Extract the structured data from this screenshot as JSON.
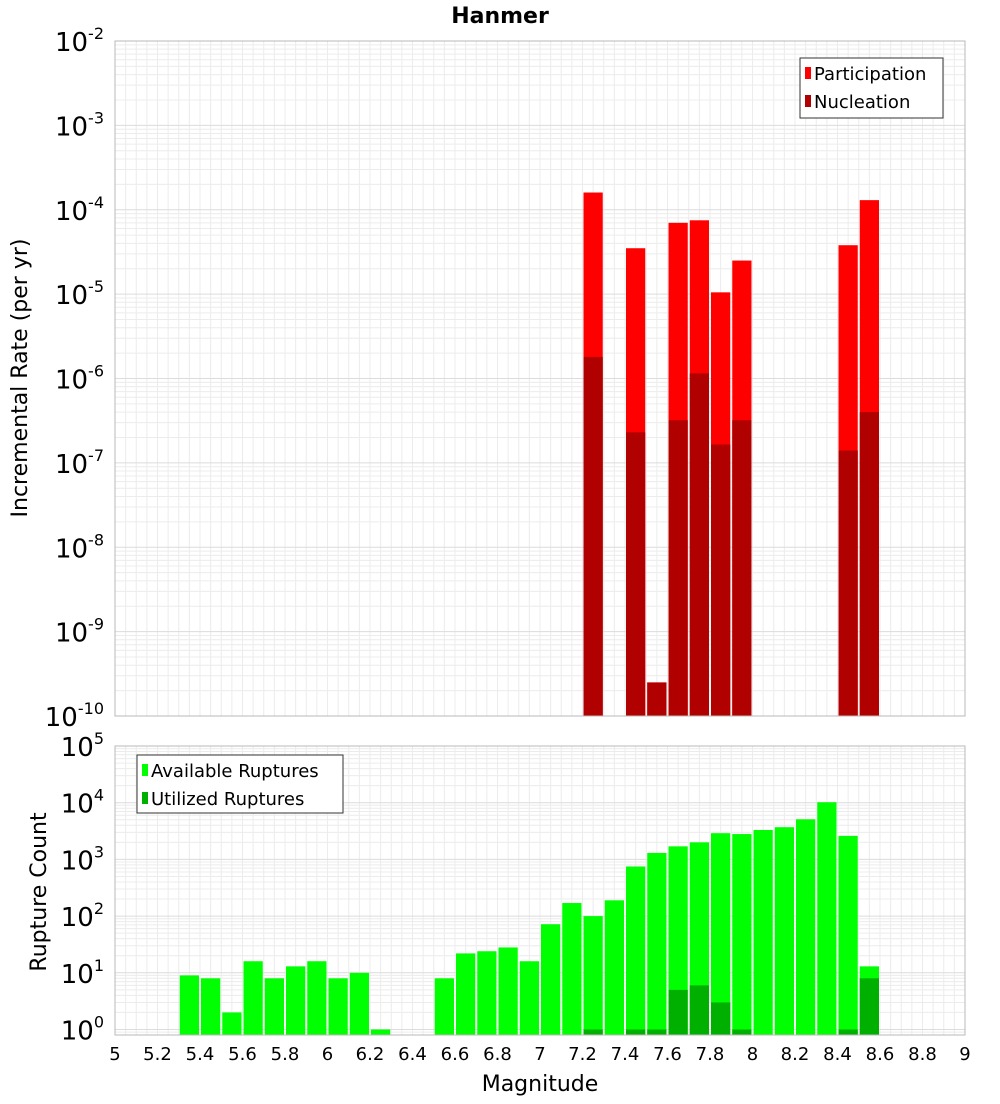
{
  "chart_data": {
    "title": "Hanmer",
    "xlabel": "Magnitude",
    "xlim": [
      5,
      9
    ],
    "x_ticks": [
      "5",
      "5.2",
      "5.4",
      "5.6",
      "5.8",
      "6",
      "6.2",
      "6.4",
      "6.6",
      "6.8",
      "7",
      "7.2",
      "7.4",
      "7.6",
      "7.8",
      "8",
      "8.2",
      "8.4",
      "8.6",
      "8.8",
      "9"
    ],
    "bin_width": 0.1,
    "grid": true,
    "panels": [
      {
        "type": "bar",
        "ylabel": "Incremental Rate (per yr)",
        "yscale": "log",
        "ylim": [
          1e-10,
          0.01
        ],
        "y_tick_exponents": [
          "-10",
          "-9",
          "-8",
          "-7",
          "-6",
          "-5",
          "-4",
          "-3",
          "-2"
        ],
        "legend_position": "top-right",
        "series": [
          {
            "name": "Participation",
            "color": "#ff0000",
            "x": [
              7.25,
              7.45,
              7.55,
              7.65,
              7.75,
              7.85,
              7.95,
              8.45,
              8.55
            ],
            "values": [
              0.00016,
              3.5e-05,
              2.5e-10,
              7e-05,
              7.5e-05,
              1.05e-05,
              2.5e-05,
              3.8e-05,
              0.00013
            ]
          },
          {
            "name": "Nucleation",
            "color": "#b00000",
            "x": [
              7.25,
              7.45,
              7.55,
              7.65,
              7.75,
              7.85,
              7.95,
              8.45,
              8.55
            ],
            "values": [
              1.8e-06,
              2.3e-07,
              2.5e-10,
              3.2e-07,
              1.15e-06,
              1.65e-07,
              3.2e-07,
              1.4e-07,
              4e-07
            ]
          }
        ]
      },
      {
        "type": "bar",
        "ylabel": "Rupture Count",
        "yscale": "log",
        "ylim": [
          0.8,
          100000
        ],
        "y_tick_exponents": [
          "0",
          "1",
          "2",
          "3",
          "4",
          "5"
        ],
        "legend_position": "top-left",
        "series": [
          {
            "name": "Available Ruptures",
            "color": "#00ff00",
            "x": [
              5.35,
              5.45,
              5.55,
              5.65,
              5.75,
              5.85,
              5.95,
              6.05,
              6.15,
              6.25,
              6.55,
              6.65,
              6.75,
              6.85,
              6.95,
              7.05,
              7.15,
              7.25,
              7.35,
              7.45,
              7.55,
              7.65,
              7.75,
              7.85,
              7.95,
              8.05,
              8.15,
              8.25,
              8.35,
              8.45,
              8.55
            ],
            "values": [
              9,
              8,
              2,
              16,
              8,
              13,
              16,
              8,
              10,
              1,
              8,
              22,
              24,
              28,
              16,
              72,
              170,
              100,
              190,
              750,
              1300,
              1700,
              2000,
              2900,
              2800,
              3300,
              3700,
              5100,
              10200,
              2600,
              13
            ]
          },
          {
            "name": "Utilized Ruptures",
            "color": "#00b000",
            "x": [
              7.25,
              7.45,
              7.55,
              7.65,
              7.75,
              7.85,
              7.95,
              8.45,
              8.55
            ],
            "values": [
              1,
              1,
              1,
              5,
              6,
              3,
              1,
              1,
              8
            ]
          }
        ]
      }
    ]
  }
}
